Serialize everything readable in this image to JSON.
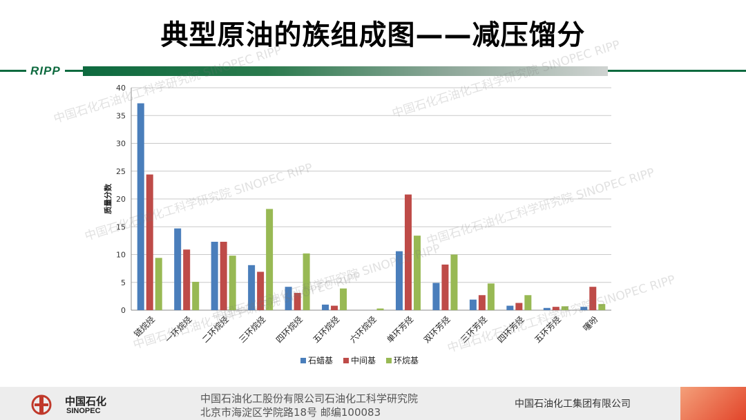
{
  "page": {
    "title": "典型原油的族组成图——减压馏分",
    "brand_tag": "RIPP"
  },
  "watermarks": [
    "中国石化石油化工科学研究院 SINOPEC RIPP",
    "中国石化石油化工科学研究院 SINOPEC RIPP",
    "中国石化石油化工科学研究院 SINOPEC RIPP",
    "中国石化石油化工科学研究院 SINOPEC RIPP",
    "中国石化石油化工科学研究院 SINOPEC RIPP",
    "中国石化石油化工科学研究院 SINOPEC RIPP",
    "中国石化石油化工科学研究院 SINOPEC RIPP"
  ],
  "chart_data": {
    "type": "bar",
    "title": "",
    "xlabel": "",
    "ylabel": "质量分数",
    "ylim": [
      0,
      40
    ],
    "yticks": [
      0,
      5,
      10,
      15,
      20,
      25,
      30,
      35,
      40
    ],
    "grid": true,
    "legend_position": "bottom",
    "categories": [
      "链烷烃",
      "一环烷烃",
      "二环烷烃",
      "三环烷烃",
      "四环烷烃",
      "五环烷烃",
      "六环烷烃",
      "单环芳烃",
      "双环芳烃",
      "三环芳烃",
      "四环芳烃",
      "五环芳烃",
      "噻吩"
    ],
    "series": [
      {
        "name": "石蜡基",
        "color": "#4a7ebb",
        "values": [
          37.2,
          14.7,
          12.3,
          8.1,
          4.2,
          1.0,
          0.0,
          10.6,
          4.9,
          1.9,
          0.8,
          0.4,
          0.6
        ]
      },
      {
        "name": "中间基",
        "color": "#be4b48",
        "values": [
          24.4,
          10.9,
          12.3,
          6.9,
          3.1,
          0.8,
          0.0,
          20.8,
          8.2,
          2.7,
          1.3,
          0.6,
          4.2
        ]
      },
      {
        "name": "环烷基",
        "color": "#98b954",
        "values": [
          9.4,
          5.1,
          9.8,
          18.2,
          10.2,
          3.9,
          0.3,
          13.4,
          10.0,
          4.8,
          2.7,
          0.7,
          1.1
        ]
      }
    ]
  },
  "footer": {
    "logo_cn": "中国石化",
    "logo_en": "SINOPEC",
    "line1": "中国石油化工股份有限公司石油化工科学研究院",
    "line2": "北京市海淀区学院路18号 邮编100083",
    "right": "中国石油化工集团有限公司"
  }
}
